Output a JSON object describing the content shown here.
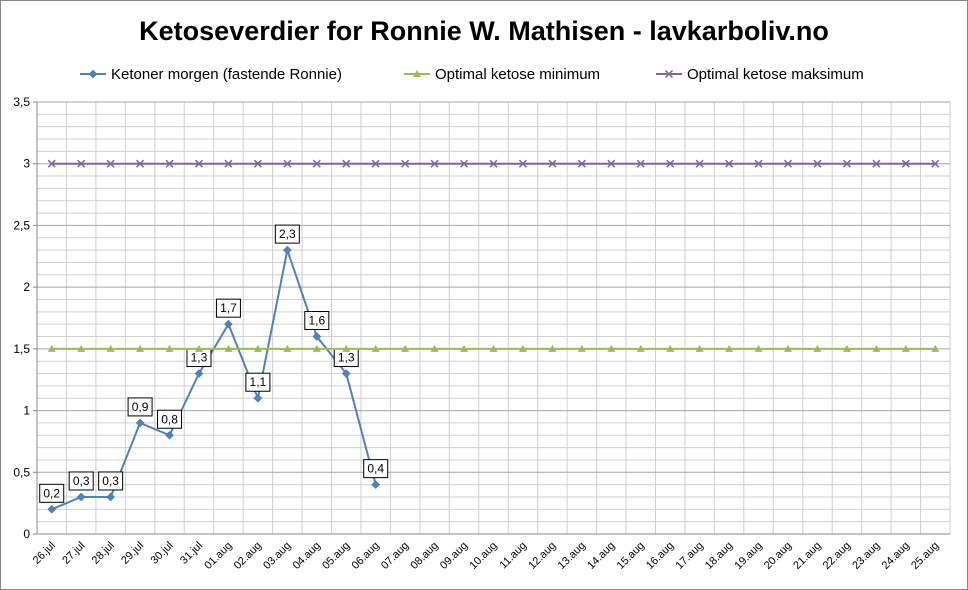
{
  "chart_data": {
    "type": "line",
    "title": "Ketoseverdier for Ronnie W. Mathisen - lavkarboliv.no",
    "categories": [
      "26.jul",
      "27.jul",
      "28.jul",
      "29.jul",
      "30.jul",
      "31.jul",
      "01.aug",
      "02.aug",
      "03.aug",
      "04.aug",
      "05.aug",
      "06.aug",
      "07.aug",
      "08.aug",
      "09.aug",
      "10.aug",
      "11.aug",
      "12.aug",
      "13.aug",
      "14.aug",
      "15.aug",
      "16.aug",
      "17.aug",
      "18.aug",
      "19.aug",
      "20.aug",
      "21.aug",
      "22.aug",
      "23.aug",
      "24.aug",
      "25.aug"
    ],
    "series": [
      {
        "name": "Ketoner morgen (fastende Ronnie)",
        "color": "#4f81bd",
        "marker": "diamond",
        "values": [
          0.2,
          0.3,
          0.3,
          0.9,
          0.8,
          1.3,
          1.7,
          1.1,
          2.3,
          1.6,
          1.3,
          0.4,
          null,
          null,
          null,
          null,
          null,
          null,
          null,
          null,
          null,
          null,
          null,
          null,
          null,
          null,
          null,
          null,
          null,
          null,
          null
        ],
        "value_labels": [
          "0,2",
          "0,3",
          "0,3",
          "0,9",
          "0,8",
          "1,3",
          "1,7",
          "1,1",
          "2,3",
          "1,6",
          "1,3",
          "0,4",
          null,
          null,
          null,
          null,
          null,
          null,
          null,
          null,
          null,
          null,
          null,
          null,
          null,
          null,
          null,
          null,
          null,
          null,
          null
        ]
      },
      {
        "name": "Optimal ketose minimum",
        "color": "#9bbb59",
        "marker": "triangle",
        "values": [
          1.5,
          1.5,
          1.5,
          1.5,
          1.5,
          1.5,
          1.5,
          1.5,
          1.5,
          1.5,
          1.5,
          1.5,
          1.5,
          1.5,
          1.5,
          1.5,
          1.5,
          1.5,
          1.5,
          1.5,
          1.5,
          1.5,
          1.5,
          1.5,
          1.5,
          1.5,
          1.5,
          1.5,
          1.5,
          1.5,
          1.5
        ]
      },
      {
        "name": "Optimal ketose maksimum",
        "color": "#8064a2",
        "marker": "x",
        "values": [
          3,
          3,
          3,
          3,
          3,
          3,
          3,
          3,
          3,
          3,
          3,
          3,
          3,
          3,
          3,
          3,
          3,
          3,
          3,
          3,
          3,
          3,
          3,
          3,
          3,
          3,
          3,
          3,
          3,
          3,
          3
        ]
      }
    ],
    "ylim": [
      0,
      3.5
    ],
    "yticks": [
      0,
      {
        "value": 0.5,
        "label": "0,5"
      },
      1,
      {
        "value": 1.5,
        "label": "1,5"
      },
      2,
      {
        "value": 2.5,
        "label": "2,5"
      },
      3,
      {
        "value": 3.5,
        "label": "3,5"
      }
    ],
    "grid": true,
    "legend": "top"
  }
}
